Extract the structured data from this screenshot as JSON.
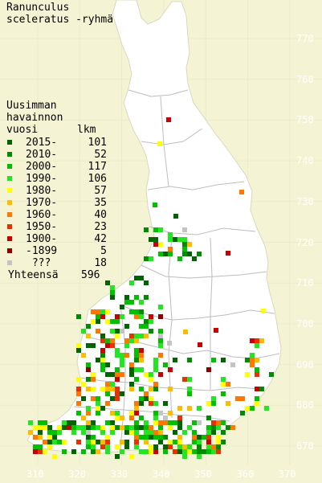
{
  "title": {
    "line1": "Ranunculus",
    "line2": "sceleratus -ryhmä"
  },
  "legend": {
    "heading1": "Uusimman",
    "heading2": "havainnon",
    "col_year": "vuosi",
    "col_count": "lkm",
    "items": [
      {
        "label": "2015-",
        "count": "101",
        "color": "#006400"
      },
      {
        "label": "2010-",
        "count": "52",
        "color": "#008c00"
      },
      {
        "label": "2000-",
        "count": "117",
        "color": "#00c000"
      },
      {
        "label": "1990-",
        "count": "106",
        "color": "#22e622"
      },
      {
        "label": "1980-",
        "count": "57",
        "color": "#ffff00"
      },
      {
        "label": "1970-",
        "count": "35",
        "color": "#ffbb00"
      },
      {
        "label": "1960-",
        "count": "40",
        "color": "#ff7700"
      },
      {
        "label": "1950-",
        "count": "23",
        "color": "#e83000"
      },
      {
        "label": "1900-",
        "count": "42",
        "color": "#c80000"
      },
      {
        "label": "-1899",
        "count": "5",
        "color": "#8b0000"
      },
      {
        "label": " ???",
        "count": "18",
        "color": "#c4c4c4"
      }
    ],
    "total_label": "Yhteensä",
    "total_count": "596"
  },
  "axes": {
    "x_labels": [
      "310",
      "320",
      "330",
      "340",
      "350",
      "360",
      "370"
    ],
    "y_labels": [
      "770",
      "760",
      "750",
      "740",
      "730",
      "720",
      "710",
      "700",
      "690",
      "680",
      "670"
    ]
  },
  "colors": {
    "background": "#f4f4d4",
    "land": "#ffffff",
    "boundary": "#bdbdbd",
    "grid_label": "#ffffff"
  }
}
